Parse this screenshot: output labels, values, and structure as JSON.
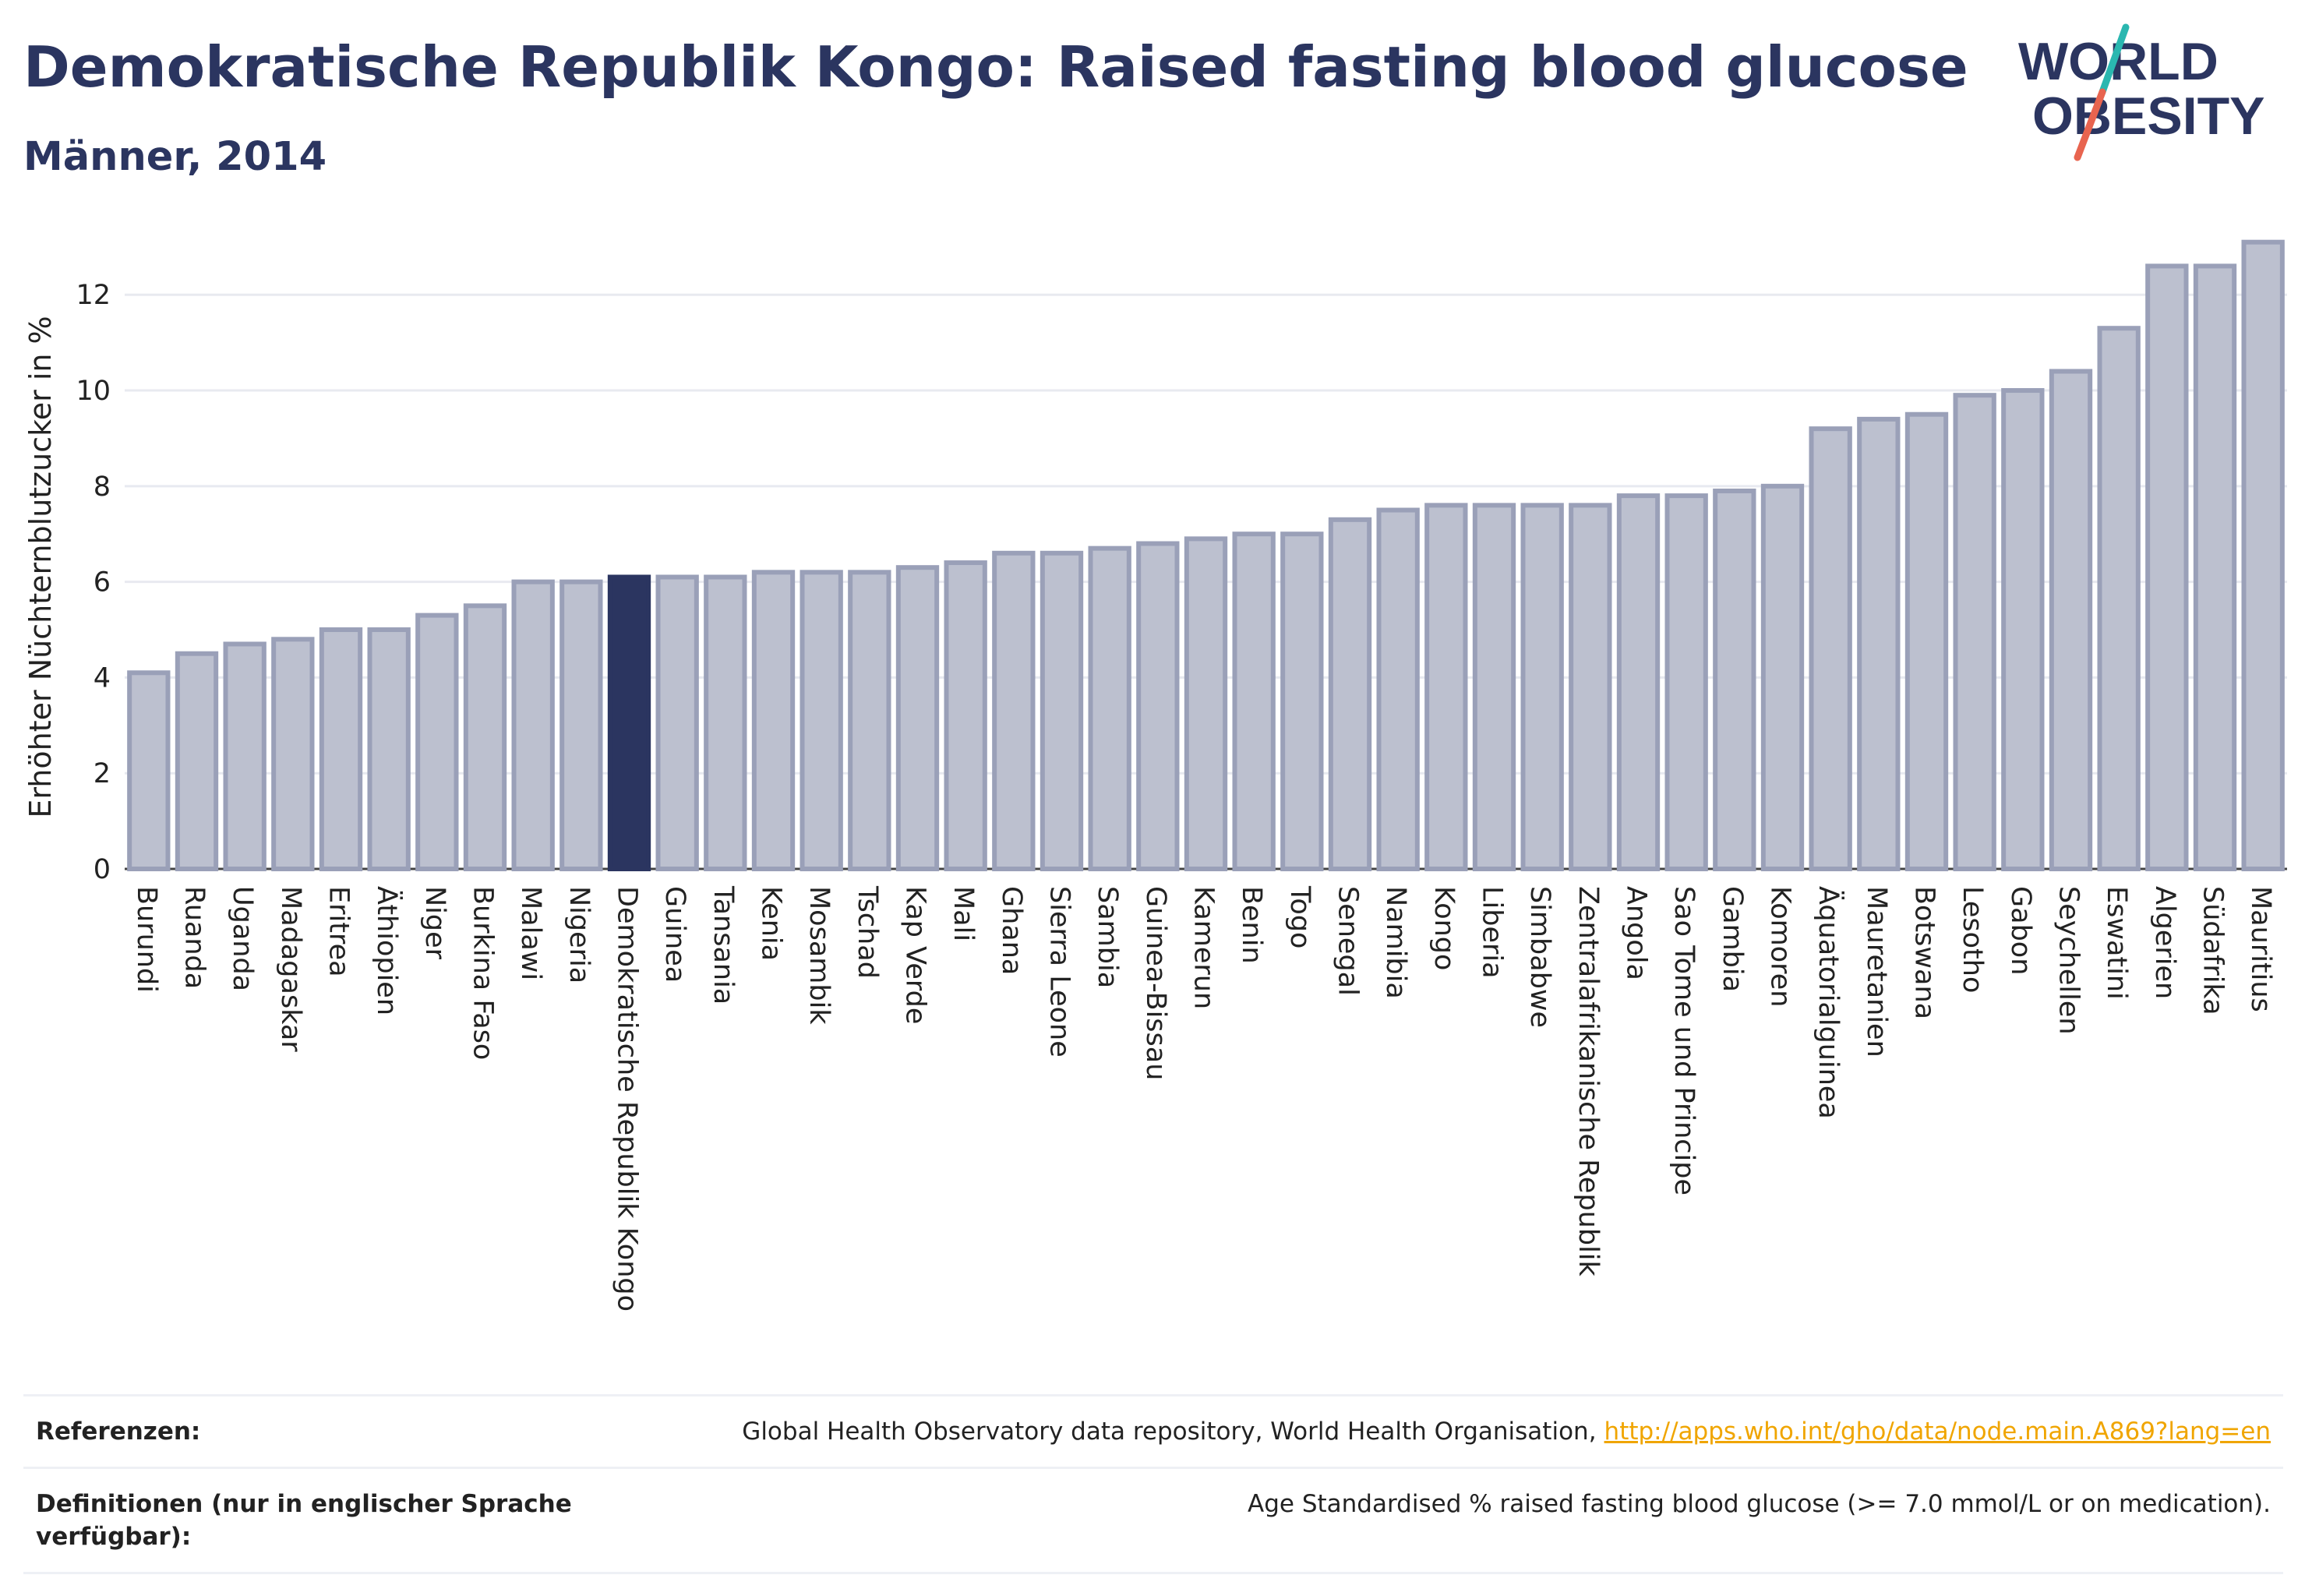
{
  "header": {
    "title": "Demokratische Republik Kongo: Raised fasting blood glucose",
    "subtitle": "Männer, 2014"
  },
  "logo": {
    "line1": "WORLD",
    "line2": "OBESITY",
    "colors": {
      "text": "#2b3560",
      "slash_top": "#2ab7b0",
      "slash_bottom": "#e8644f"
    }
  },
  "colors": {
    "bar_fill": "#bcc0cf",
    "bar_stroke": "#9aa0b8",
    "highlight_fill": "#2b3560",
    "axis_text": "#222222",
    "grid": "#e8eaf0"
  },
  "chart_data": {
    "type": "bar",
    "title": "",
    "xlabel": "",
    "ylabel": "Erhöhter Nüchternblutzucker in %",
    "ylim": [
      0,
      13.6
    ],
    "yticks": [
      0,
      2,
      4,
      6,
      8,
      10,
      12
    ],
    "grid": true,
    "highlight": "Demokratische Republik Kongo",
    "categories": [
      "Burundi",
      "Ruanda",
      "Uganda",
      "Madagaskar",
      "Eritrea",
      "Äthiopien",
      "Niger",
      "Burkina Faso",
      "Malawi",
      "Nigeria",
      "Demokratische Republik Kongo",
      "Guinea",
      "Tansania",
      "Kenia",
      "Mosambik",
      "Tschad",
      "Kap Verde",
      "Mali",
      "Ghana",
      "Sierra Leone",
      "Sambia",
      "Guinea-Bissau",
      "Kamerun",
      "Benin",
      "Togo",
      "Senegal",
      "Namibia",
      "Kongo",
      "Liberia",
      "Simbabwe",
      "Zentralafrikanische Republik",
      "Angola",
      "Sao Tome und Principe",
      "Gambia",
      "Komoren",
      "Äquatorialguinea",
      "Mauretanien",
      "Botswana",
      "Lesotho",
      "Gabon",
      "Seychellen",
      "Eswatini",
      "Algerien",
      "Südafrika",
      "Mauritius"
    ],
    "values": [
      4.1,
      4.5,
      4.7,
      4.8,
      5.0,
      5.0,
      5.3,
      5.5,
      6.0,
      6.0,
      6.1,
      6.1,
      6.1,
      6.2,
      6.2,
      6.2,
      6.3,
      6.4,
      6.6,
      6.6,
      6.7,
      6.8,
      6.9,
      7.0,
      7.0,
      7.3,
      7.5,
      7.6,
      7.6,
      7.6,
      7.6,
      7.8,
      7.8,
      7.9,
      8.0,
      9.2,
      9.4,
      9.5,
      9.9,
      10.0,
      10.4,
      11.3,
      12.6,
      12.6,
      13.1
    ]
  },
  "footer": {
    "references_label": "Referenzen:",
    "references_text": "Global Health Observatory data repository, World Health Organisation,",
    "references_link": "http://apps.who.int/gho/data/node.main.A869?lang=en",
    "definitions_label": "Definitionen (nur in englischer Sprache verfügbar):",
    "definitions_text": "Age Standardised % raised fasting blood glucose (>= 7.0 mmol/L or on medication)."
  }
}
